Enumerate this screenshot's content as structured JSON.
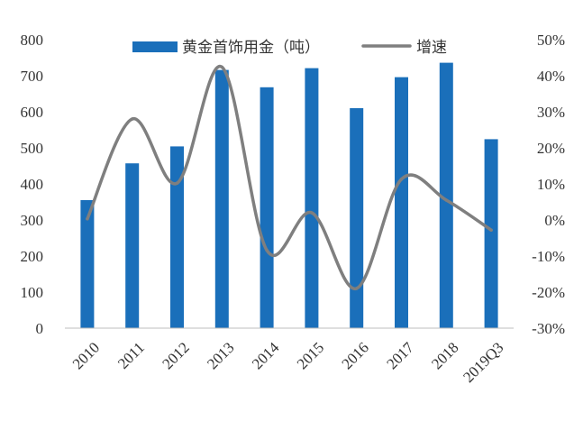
{
  "chart_data": {
    "type": "bar",
    "categories": [
      "2010",
      "2011",
      "2012",
      "2013",
      "2014",
      "2015",
      "2016",
      "2017",
      "2018",
      "2019Q3"
    ],
    "series": [
      {
        "name": "黄金首饰用金（吨）",
        "type": "bar",
        "axis": "left",
        "color": "#1A6FBA",
        "values": [
          355,
          457,
          504,
          716,
          668,
          721,
          610,
          696,
          736,
          524
        ]
      },
      {
        "name": "增速",
        "type": "line",
        "axis": "right",
        "color": "#7F7F7F",
        "smooth": true,
        "values": [
          0.3,
          28.0,
          10.2,
          42.4,
          -8.4,
          2.0,
          -19.0,
          11.3,
          5.5,
          -2.8
        ]
      }
    ],
    "y_left": {
      "ylim": [
        0,
        800
      ],
      "ticks": [
        "0",
        "100",
        "200",
        "300",
        "400",
        "500",
        "600",
        "700",
        "800"
      ]
    },
    "y_right": {
      "ylim": [
        -30,
        50
      ],
      "ticks": [
        "-30%",
        "-20%",
        "-10%",
        "0%",
        "10%",
        "20%",
        "30%",
        "40%",
        "50%"
      ]
    },
    "legend": {
      "position": "top-center",
      "bar_label": "黄金首饰用金（吨）",
      "line_label": "增速"
    },
    "grid": false,
    "title": "",
    "xlabel": "",
    "ylabel": ""
  }
}
